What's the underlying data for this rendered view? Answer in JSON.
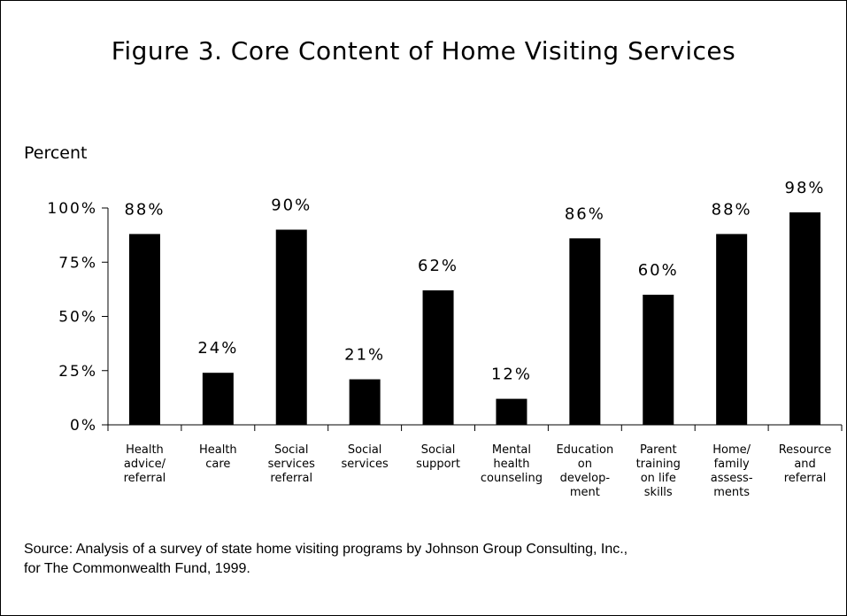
{
  "chart_data": {
    "type": "bar",
    "title": "Figure 3. Core Content of Home Visiting Services",
    "ylabel": "Percent",
    "xlabel": "",
    "ylim": [
      0,
      100
    ],
    "yticks": [
      "0%",
      "25%",
      "50%",
      "75%",
      "100%"
    ],
    "ytick_values": [
      0,
      25,
      50,
      75,
      100
    ],
    "grid": false,
    "bar_color": "#000000",
    "categories": [
      [
        "Health",
        "advice/",
        "referral"
      ],
      [
        "Health",
        "care"
      ],
      [
        "Social",
        "services",
        "referral"
      ],
      [
        "Social",
        "services"
      ],
      [
        "Social",
        "support"
      ],
      [
        "Mental",
        "health",
        "counseling"
      ],
      [
        "Education",
        "on",
        "develop-",
        "ment"
      ],
      [
        "Parent",
        "training",
        "on life",
        "skills"
      ],
      [
        "Home/",
        "family",
        "assess-",
        "ments"
      ],
      [
        "Resource",
        "and",
        "referral"
      ]
    ],
    "values": [
      88,
      24,
      90,
      21,
      62,
      12,
      86,
      60,
      88,
      98
    ],
    "value_labels": [
      "88%",
      "24%",
      "90%",
      "21%",
      "62%",
      "12%",
      "86%",
      "60%",
      "88%",
      "98%"
    ]
  },
  "source": {
    "line1": "Source: Analysis of a survey of state home visiting programs by Johnson Group Consulting, Inc.,",
    "line2": "for The Commonwealth Fund, 1999."
  }
}
